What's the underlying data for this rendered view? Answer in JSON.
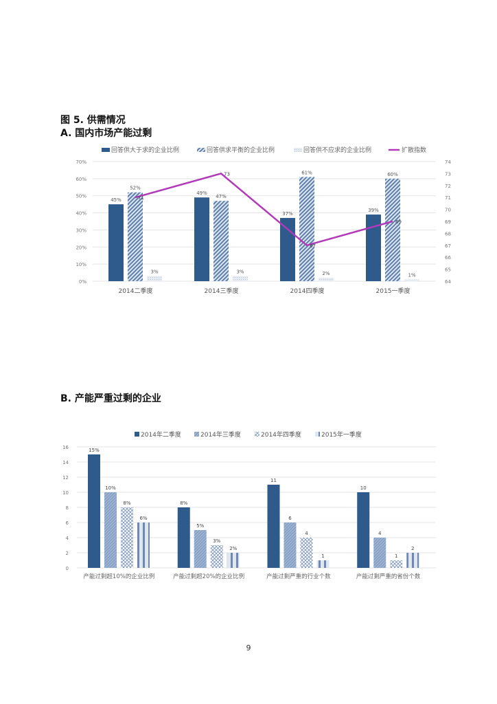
{
  "figure": {
    "title": "图 5.  供需情况",
    "subtitle_a": "A.  国内市场产能过剩",
    "subtitle_b": "B.  产能严重过剩的企业"
  },
  "page_number": "9",
  "colors": {
    "dark_blue": "#2e5a8c",
    "mid_blue": "#8ea6c8",
    "light_blue": "#c5d3e6",
    "magenta": "#b03ab8",
    "grid": "#e3e3e3",
    "axis_text": "#777777"
  },
  "chart_data": [
    {
      "type": "bar+line",
      "title": "A. 国内市场产能过剩",
      "categories": [
        "2014二季度",
        "2014三季度",
        "2014四季度",
        "2015一季度"
      ],
      "series": [
        {
          "name": "回答供大于求的企业比例",
          "type": "bar",
          "axis": "left",
          "values": [
            45,
            49,
            37,
            39
          ],
          "labels": [
            "45%",
            "49%",
            "37%",
            "39%"
          ]
        },
        {
          "name": "回答供求平衡的企业比例",
          "type": "bar",
          "axis": "left",
          "values": [
            52,
            47,
            61,
            60
          ],
          "labels": [
            "52%",
            "47%",
            "61%",
            "60%"
          ]
        },
        {
          "name": "回答供不应求的企业比例",
          "type": "bar",
          "axis": "left",
          "values": [
            3,
            3,
            2,
            1
          ],
          "labels": [
            "3%",
            "3%",
            "2%",
            "1%"
          ]
        },
        {
          "name": "扩散指数",
          "type": "line",
          "axis": "right",
          "values": [
            71,
            73,
            67,
            69
          ],
          "labels": [
            "71",
            "73",
            "67",
            "69"
          ]
        }
      ],
      "ylim_left": [
        0,
        70
      ],
      "yticks_left": [
        "0%",
        "10%",
        "20%",
        "30%",
        "40%",
        "50%",
        "60%",
        "70%"
      ],
      "ylim_right": [
        64,
        74
      ],
      "yticks_right": [
        "64",
        "65",
        "66",
        "67",
        "68",
        "69",
        "70",
        "71",
        "72",
        "73",
        "74"
      ],
      "grid": true,
      "legend_position": "top"
    },
    {
      "type": "bar",
      "title": "B. 产能严重过剩的企业",
      "categories": [
        "产能过剩超10%的企业比例",
        "产能过剩超20%的企业比例",
        "产能过剩严重的行业个数",
        "产能过剩严重的省份个数"
      ],
      "series": [
        {
          "name": "2014年二季度",
          "values": [
            15,
            8,
            11,
            10
          ],
          "labels": [
            "15%",
            "8%",
            "11",
            "10"
          ]
        },
        {
          "name": "2014年三季度",
          "values": [
            10,
            5,
            6,
            4
          ],
          "labels": [
            "10%",
            "5%",
            "6",
            "4"
          ]
        },
        {
          "name": "2014年四季度",
          "values": [
            8,
            3,
            4,
            1
          ],
          "labels": [
            "8%",
            "3%",
            "4",
            "1"
          ]
        },
        {
          "name": "2015年一季度",
          "values": [
            6,
            2,
            1,
            2
          ],
          "labels": [
            "6%",
            "2%",
            "1",
            "2"
          ]
        }
      ],
      "ylim": [
        0,
        16
      ],
      "yticks": [
        "0",
        "2",
        "4",
        "6",
        "8",
        "10",
        "12",
        "14",
        "16"
      ],
      "grid": true,
      "legend_position": "top"
    }
  ]
}
